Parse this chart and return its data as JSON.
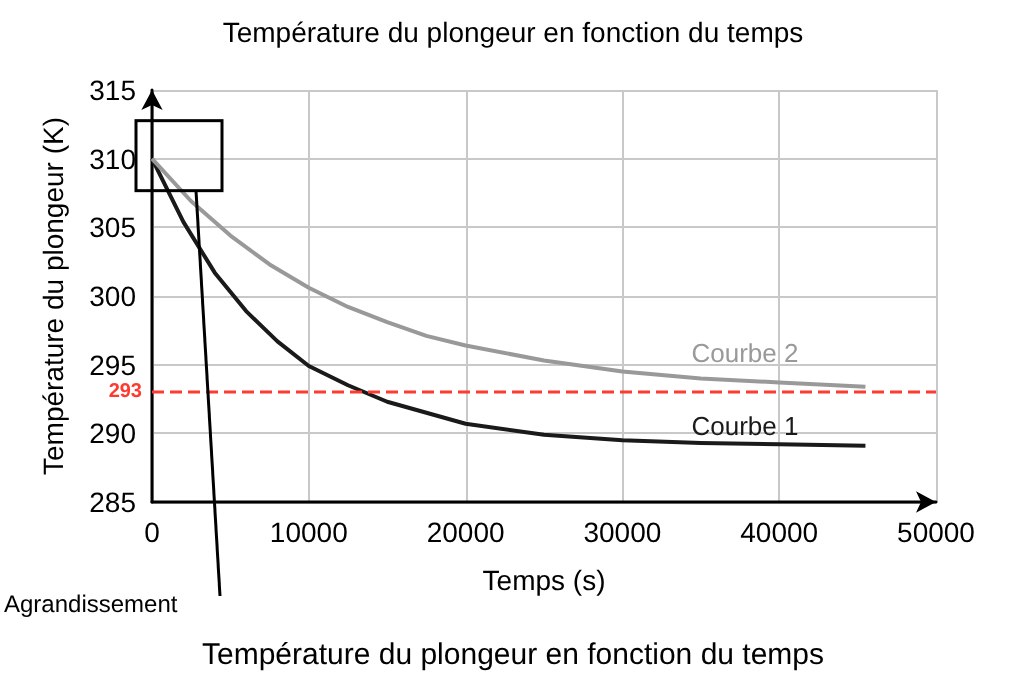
{
  "chart_data": {
    "type": "line",
    "title": "Température du plongeur en fonction du temps",
    "xlabel": "Temps (s)",
    "ylabel": "Température du plongeur (K)",
    "xlim": [
      0,
      50000
    ],
    "xticks": [
      0,
      10000,
      20000,
      30000,
      40000,
      50000
    ],
    "ylim": [
      285,
      315
    ],
    "yticks": [
      285,
      290,
      295,
      300,
      305,
      310,
      315
    ],
    "grid": true,
    "legend": false,
    "marker": "none",
    "line_style": "solid",
    "series": [
      {
        "name": "Courbe 1",
        "color": "#1a1a1a",
        "x": [
          0,
          2000,
          4000,
          6000,
          8000,
          10000,
          12500,
          15000,
          20000,
          25000,
          30000,
          35000,
          40000,
          45500
        ],
        "values": [
          310,
          305.4,
          301.7,
          298.9,
          296.7,
          294.9,
          293.5,
          292.3,
          290.7,
          289.9,
          289.5,
          289.3,
          289.2,
          289.1
        ]
      },
      {
        "name": "Courbe 2",
        "color": "#999999",
        "x": [
          0,
          2500,
          5000,
          7500,
          10000,
          12500,
          15000,
          17500,
          20000,
          25000,
          30000,
          35000,
          40000,
          45500
        ],
        "values": [
          310,
          306.9,
          304.4,
          302.3,
          300.6,
          299.2,
          298.1,
          297.1,
          296.4,
          295.3,
          294.5,
          294.0,
          293.7,
          293.4
        ]
      }
    ],
    "ref_lines": [
      {
        "axis": "y",
        "value": 293,
        "label": "293",
        "color": "#ff3b30",
        "line_style": "dashed"
      }
    ],
    "annotations": [
      "Agrandissement",
      "Température du plongeur en fonction du temps"
    ]
  }
}
